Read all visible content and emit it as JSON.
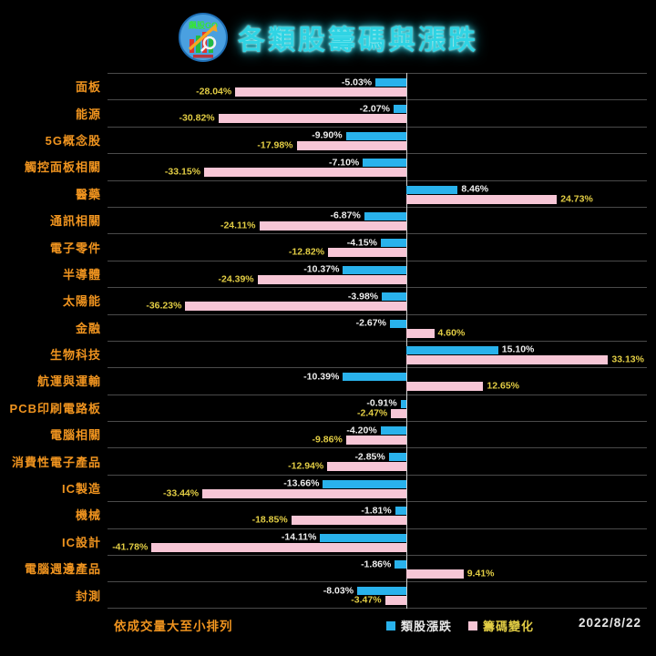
{
  "header": {
    "title": "各類股籌碼與漲跌",
    "logo_text": "飆股GO"
  },
  "footer": {
    "note": "依成交量大至小排列",
    "date": "2022/8/22"
  },
  "legend": [
    {
      "label": "類股漲跌",
      "color": "#29b2ec"
    },
    {
      "label": "籌碼變化",
      "color": "#f7c6d6"
    }
  ],
  "colors": {
    "background": "#000000",
    "title": "#2fd4e4",
    "category_label": "#f0941f",
    "gain_bar": "#29b2ec",
    "chip_bar": "#f7c6d6",
    "gain_value_label": "#eeeeee",
    "chip_value_label": "#e2cd44",
    "separator": "#4a4a4a",
    "zero_line": "#cfcfcf",
    "note": "#f0941f",
    "date": "#e8e8e8"
  },
  "chart_data": {
    "type": "bar",
    "orientation": "horizontal",
    "title": "各類股籌碼與漲跌",
    "sort_note": "依成交量大至小排列",
    "date": "2022/8/22",
    "unit": "%",
    "xlim": [
      -49,
      39.5
    ],
    "grid": "row-separators",
    "legend_position": "bottom",
    "categories": [
      "面板",
      "能源",
      "5G概念股",
      "觸控面板相關",
      "醫藥",
      "通訊相關",
      "電子零件",
      "半導體",
      "太陽能",
      "金融",
      "生物科技",
      "航運與運輸",
      "PCB印刷電路板",
      "電腦相關",
      "消費性電子產品",
      "IC製造",
      "機械",
      "IC設計",
      "電腦週邊產品",
      "封測"
    ],
    "series": [
      {
        "name": "類股漲跌",
        "color": "#29b2ec",
        "values": [
          -5.03,
          -2.07,
          -9.9,
          -7.1,
          8.46,
          -6.87,
          -4.15,
          -10.37,
          -3.98,
          -2.67,
          15.1,
          -10.39,
          -0.91,
          -4.2,
          -2.85,
          -13.66,
          -1.81,
          -14.11,
          -1.86,
          -8.03
        ]
      },
      {
        "name": "籌碼變化",
        "color": "#f7c6d6",
        "values": [
          -28.04,
          -30.82,
          -17.98,
          -33.15,
          24.73,
          -24.11,
          -12.82,
          -24.39,
          -36.23,
          4.6,
          33.13,
          12.65,
          -2.47,
          -9.86,
          -12.94,
          -33.44,
          -18.85,
          -41.78,
          9.41,
          -3.47
        ]
      }
    ]
  }
}
